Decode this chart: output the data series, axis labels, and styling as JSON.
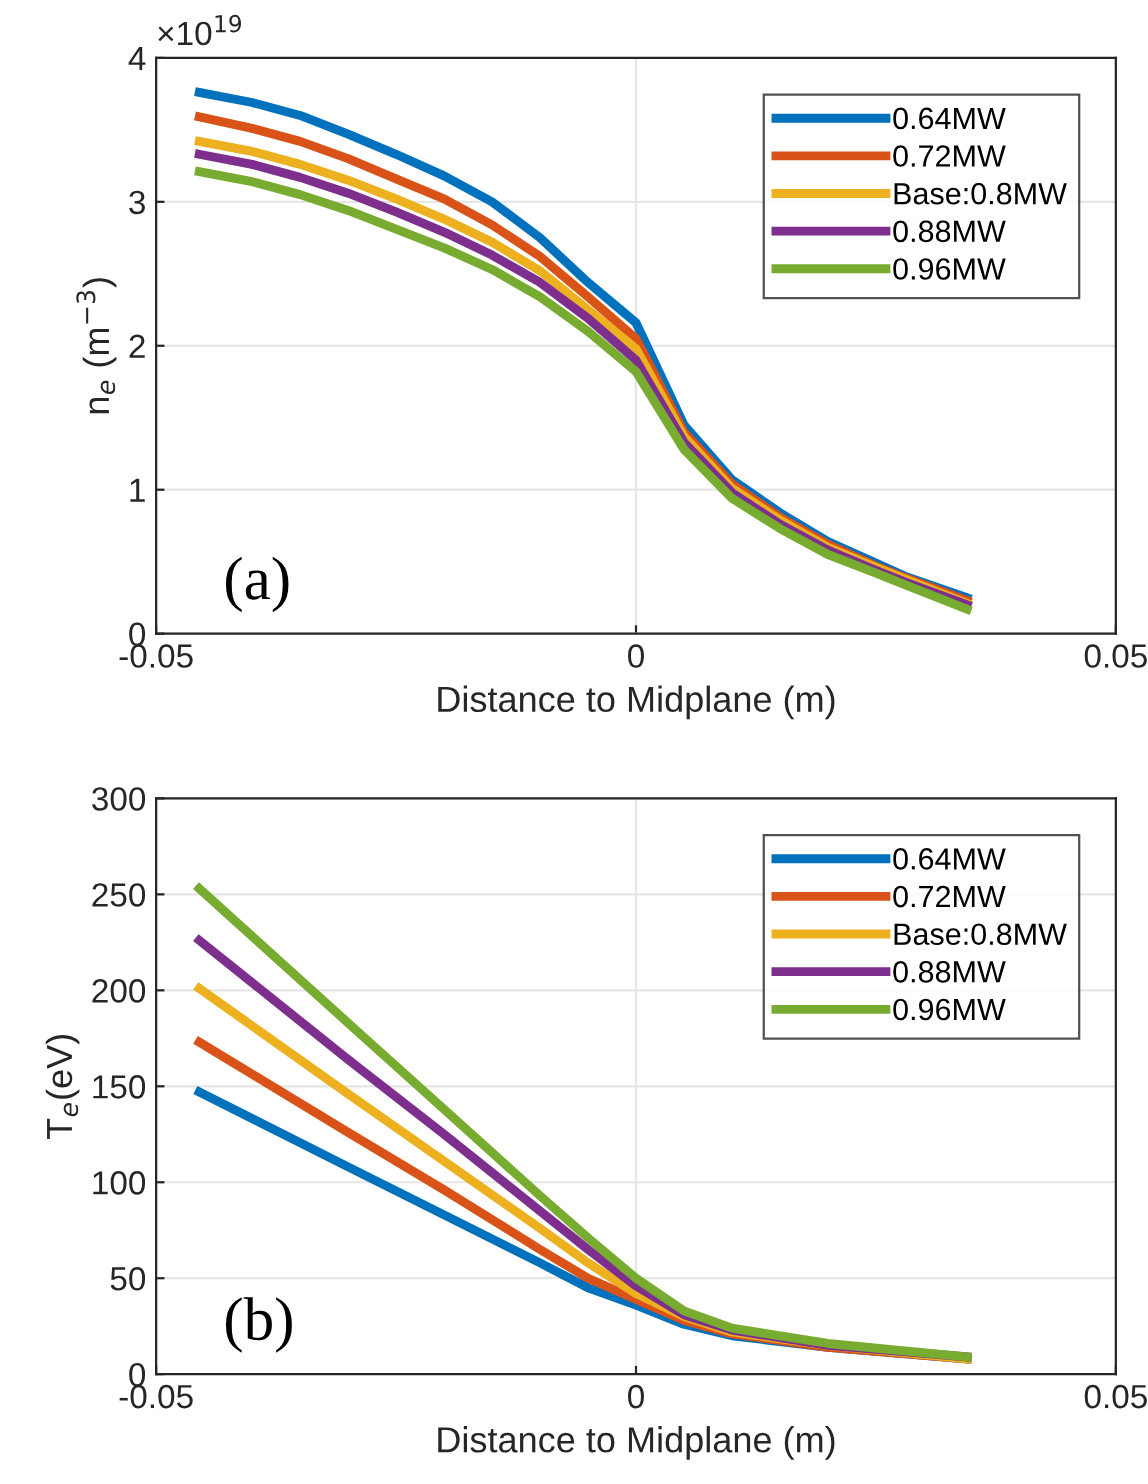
{
  "chart_data": [
    {
      "type": "line",
      "xlabel": "Distance to Midplane (m)",
      "ylabel": "n$_{e}$ (m$^{−3}$)",
      "annotations": [
        "×10$^{19}$",
        "(a)"
      ],
      "x": [
        -0.0455,
        -0.04,
        -0.035,
        -0.03,
        -0.025,
        -0.02,
        -0.015,
        -0.01,
        -0.005,
        0,
        0.005,
        0.01,
        0.015,
        0.02,
        0.025,
        0.028,
        0.0345
      ],
      "xlim": [
        -0.05,
        0.05
      ],
      "xticks": [
        -0.05,
        0,
        0.05
      ],
      "ylim": [
        0,
        4
      ],
      "yticks": [
        0,
        1,
        2,
        3,
        4
      ],
      "grid": true,
      "legend": "top right",
      "series": [
        {
          "name": "0.64MW",
          "color": "#0072bd",
          "values": [
            3.76,
            3.69,
            3.6,
            3.47,
            3.33,
            3.18,
            3.0,
            2.75,
            2.44,
            2.16,
            1.45,
            1.07,
            0.84,
            0.64,
            0.49,
            0.4,
            0.25
          ]
        },
        {
          "name": "0.72MW",
          "color": "#d95319",
          "values": [
            3.59,
            3.51,
            3.42,
            3.3,
            3.16,
            3.02,
            2.84,
            2.62,
            2.34,
            2.05,
            1.4,
            1.04,
            0.81,
            0.62,
            0.47,
            0.39,
            0.23
          ]
        },
        {
          "name": "Base:0.8MW",
          "color": "#edb120",
          "values": [
            3.42,
            3.35,
            3.26,
            3.15,
            3.02,
            2.88,
            2.72,
            2.52,
            2.25,
            1.98,
            1.37,
            1.01,
            0.79,
            0.6,
            0.46,
            0.38,
            0.21
          ]
        },
        {
          "name": "0.88MW",
          "color": "#7e2f8e",
          "values": [
            3.33,
            3.26,
            3.17,
            3.06,
            2.93,
            2.79,
            2.63,
            2.44,
            2.19,
            1.9,
            1.33,
            0.98,
            0.76,
            0.58,
            0.44,
            0.36,
            0.2
          ]
        },
        {
          "name": "0.96MW",
          "color": "#77ac30",
          "values": [
            3.21,
            3.14,
            3.05,
            2.94,
            2.81,
            2.68,
            2.53,
            2.34,
            2.1,
            1.82,
            1.28,
            0.94,
            0.73,
            0.55,
            0.42,
            0.34,
            0.17
          ]
        }
      ]
    },
    {
      "type": "line",
      "xlabel": "Distance to Midplane (m)",
      "ylabel": "T$_{e}$(eV)",
      "annotations": [
        "(b)"
      ],
      "x": [
        -0.0455,
        -0.03,
        -0.02,
        -0.01,
        -0.005,
        0,
        0.005,
        0.01,
        0.02,
        0.0345
      ],
      "xlim": [
        -0.05,
        0.05
      ],
      "xticks": [
        -0.05,
        0,
        0.05
      ],
      "ylim": [
        0,
        300
      ],
      "yticks": [
        0,
        50,
        100,
        150,
        200,
        250,
        300
      ],
      "grid": true,
      "legend": "top right",
      "series": [
        {
          "name": "0.64MW",
          "color": "#0072bd",
          "values": [
            147,
            108,
            83,
            58,
            45,
            36,
            26,
            20,
            14,
            8
          ]
        },
        {
          "name": "0.72MW",
          "color": "#d95319",
          "values": [
            173,
            126,
            96,
            65,
            50,
            39,
            28,
            21,
            14,
            8
          ]
        },
        {
          "name": "Base:0.8MW",
          "color": "#edb120",
          "values": [
            201,
            146,
            111,
            76,
            58,
            42,
            30,
            22,
            15,
            8
          ]
        },
        {
          "name": "0.88MW",
          "color": "#7e2f8e",
          "values": [
            226,
            164,
            125,
            85,
            65,
            46,
            31,
            23,
            15,
            9
          ]
        },
        {
          "name": "0.96MW",
          "color": "#77ac30",
          "values": [
            253,
            183,
            138,
            93,
            71,
            50,
            33,
            24,
            16,
            9
          ]
        }
      ]
    }
  ]
}
